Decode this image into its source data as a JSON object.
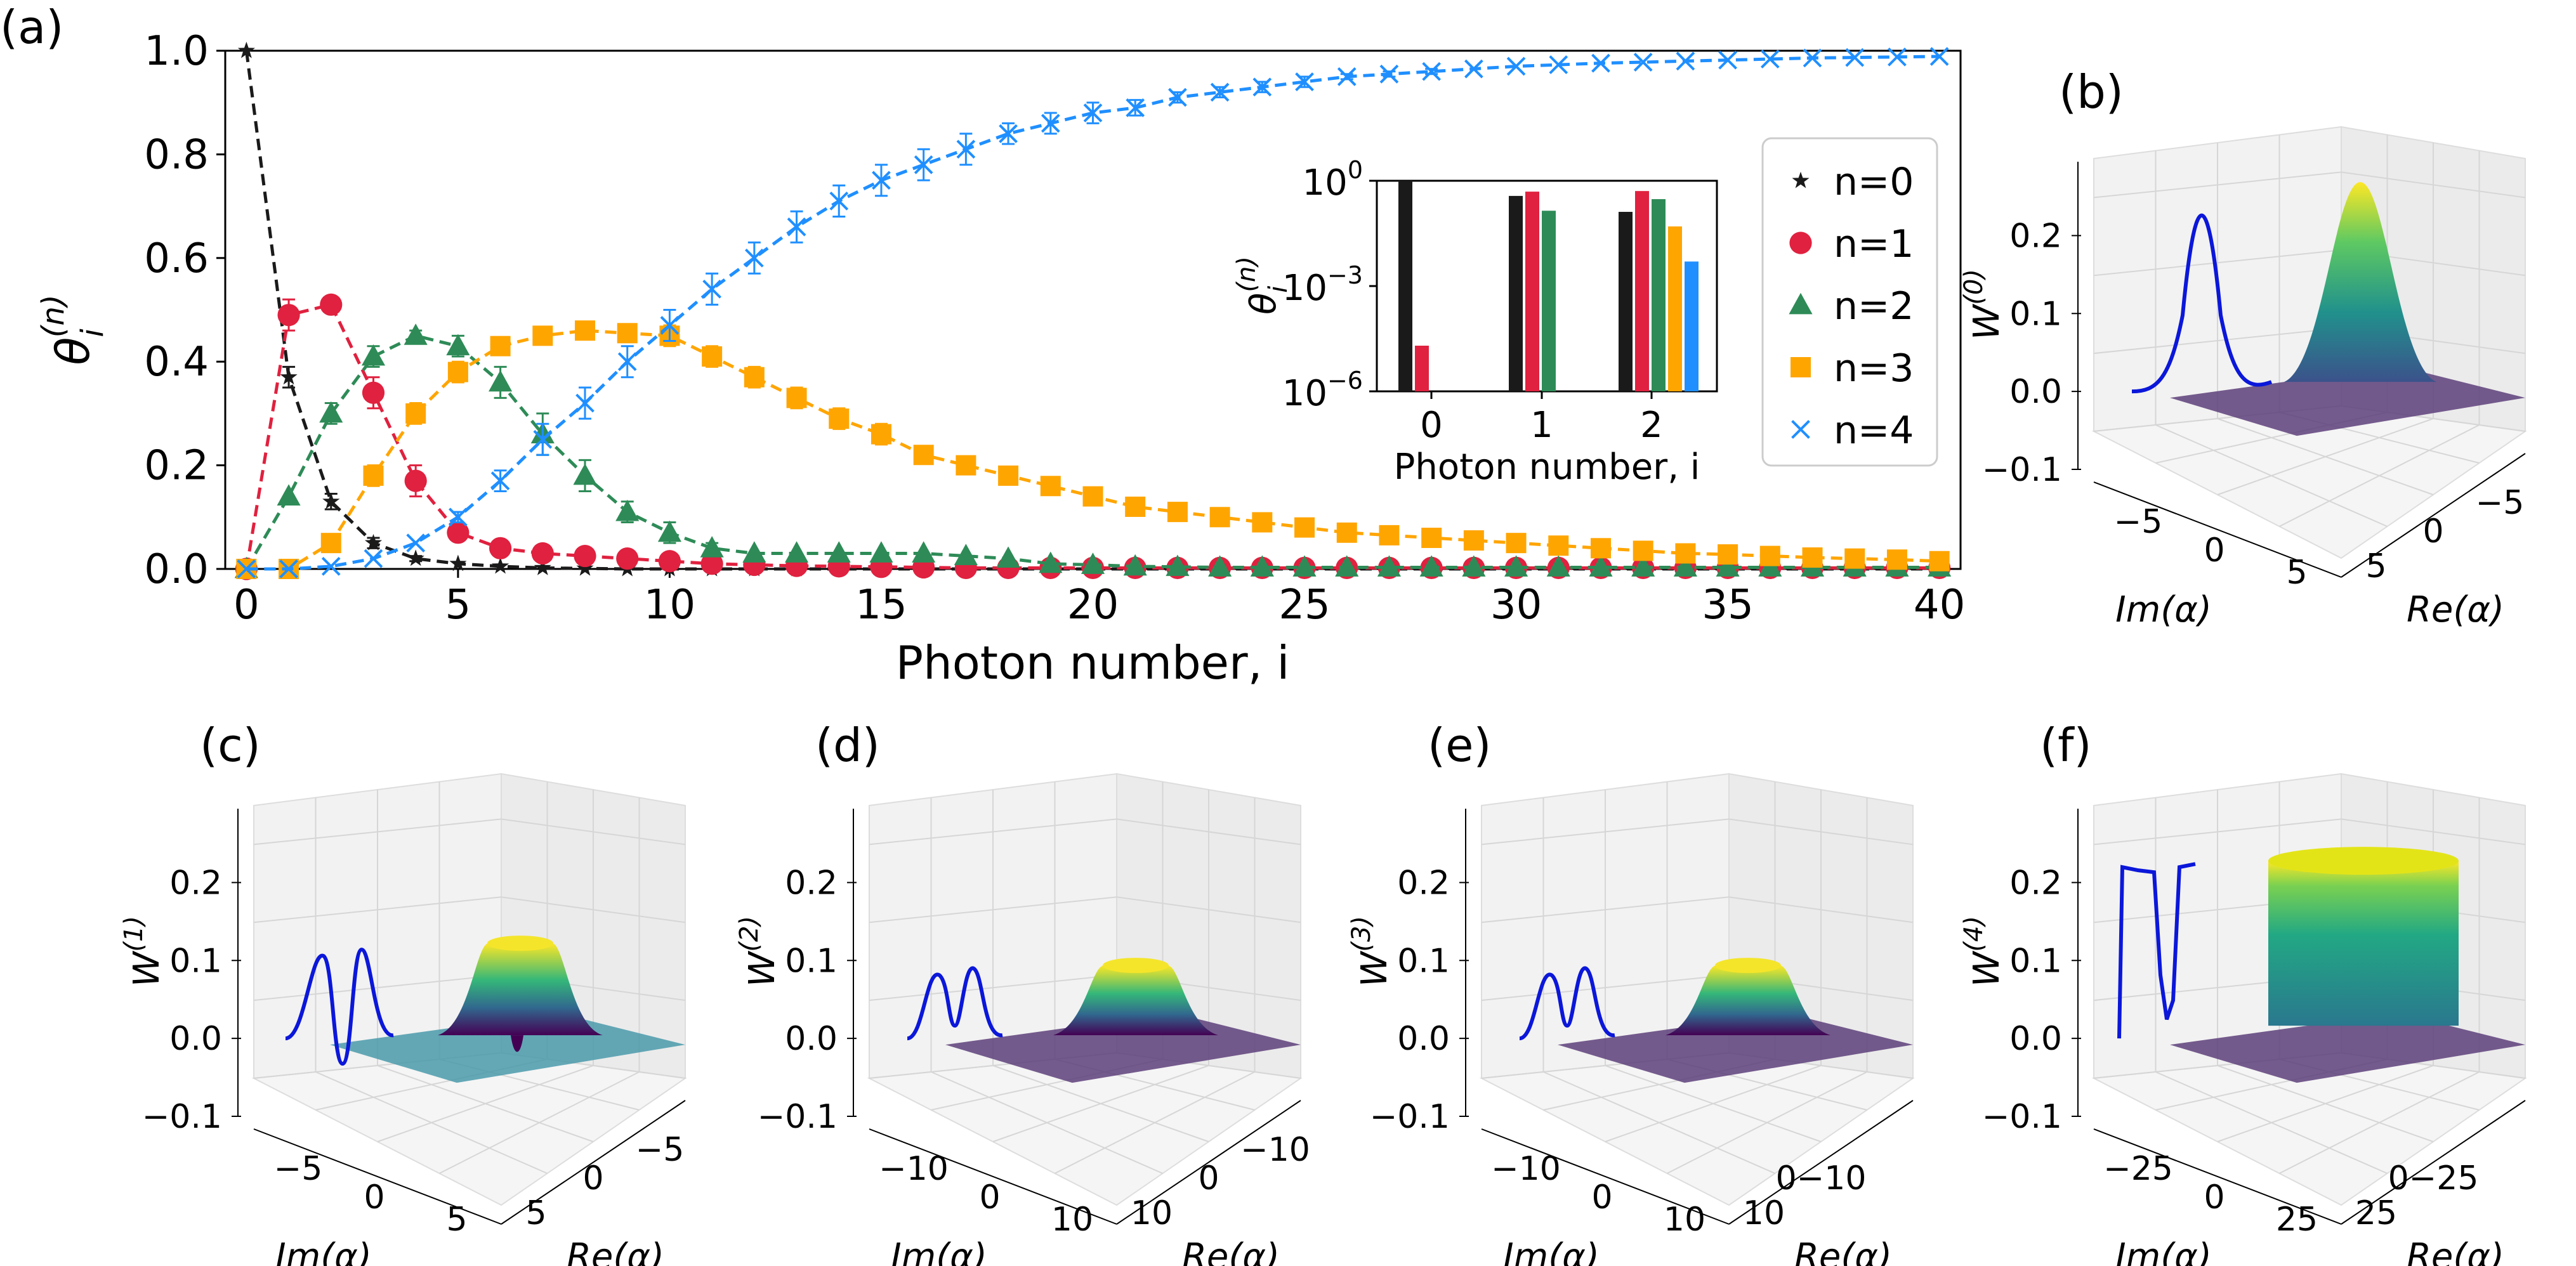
{
  "panel_labels": {
    "a": "(a)",
    "b": "(b)",
    "c": "(c)",
    "d": "(d)",
    "e": "(e)",
    "f": "(f)"
  },
  "main": {
    "xlabel": "Photon number, i",
    "ylabel_base": "θ",
    "ylabel_sub": "i",
    "ylabel_sup": "(n)",
    "xticks": [
      "0",
      "5",
      "10",
      "15",
      "20",
      "25",
      "30",
      "35",
      "40"
    ],
    "yticks": [
      "0.0",
      "0.2",
      "0.4",
      "0.6",
      "0.8",
      "1.0"
    ],
    "legend": [
      "n=0",
      "n=1",
      "n=2",
      "n=3",
      "n=4"
    ]
  },
  "inset": {
    "xlabel": "Photon number, i",
    "ylabel_base": "θ",
    "ylabel_sub": "i",
    "ylabel_sup": "(n)",
    "xticks": [
      "0",
      "1",
      "2"
    ],
    "yticks_base": "10",
    "yticks_exp": [
      "0",
      "−3",
      "−6"
    ]
  },
  "panels3d": [
    {
      "key": "b",
      "zlabel_base": "W",
      "zlabel_sup": "(0)",
      "zticks": [
        "0.2",
        "0.1",
        "0.0",
        "−0.1"
      ],
      "imticks": [
        "−5",
        "0",
        "5"
      ],
      "reticks": [
        "5",
        "0",
        "−5"
      ],
      "im_label": "Im(α)",
      "re_label": "Re(α)"
    },
    {
      "key": "c",
      "zlabel_base": "W",
      "zlabel_sup": "(1)",
      "zticks": [
        "0.2",
        "0.1",
        "0.0",
        "−0.1"
      ],
      "imticks": [
        "−5",
        "0",
        "5"
      ],
      "reticks": [
        "5",
        "0",
        "−5"
      ],
      "im_label": "Im(α)",
      "re_label": "Re(α)"
    },
    {
      "key": "d",
      "zlabel_base": "W",
      "zlabel_sup": "(2)",
      "zticks": [
        "0.2",
        "0.1",
        "0.0",
        "−0.1"
      ],
      "imticks": [
        "−10",
        "0",
        "10"
      ],
      "reticks": [
        "10",
        "0",
        "−10"
      ],
      "im_label": "Im(α)",
      "re_label": "Re(α)"
    },
    {
      "key": "e",
      "zlabel_base": "W",
      "zlabel_sup": "(3)",
      "zticks": [
        "0.2",
        "0.1",
        "0.0",
        "−0.1"
      ],
      "imticks": [
        "−10",
        "0",
        "10"
      ],
      "reticks": [
        "10",
        "0−10"
      ],
      "im_label": "Im(α)",
      "re_label": "Re(α)"
    },
    {
      "key": "f",
      "zlabel_base": "W",
      "zlabel_sup": "(4)",
      "zticks": [
        "0.2",
        "0.1",
        "0.0",
        "−0.1"
      ],
      "imticks": [
        "−25",
        "0",
        "25"
      ],
      "reticks": [
        "25",
        "0−25"
      ],
      "im_label": "Im(α)",
      "re_label": "Re(α)"
    }
  ],
  "chart_data": [
    {
      "type": "line",
      "title": "",
      "xlabel": "Photon number, i",
      "ylabel": "θ_i^(n)",
      "xlim": [
        -0.5,
        40.5
      ],
      "ylim": [
        0,
        1.0
      ],
      "grid": false,
      "legend_position": "right",
      "series": [
        {
          "name": "n=0",
          "color": "#1a1a1a",
          "marker": "star",
          "x": [
            0,
            1,
            2,
            3,
            4,
            5,
            6,
            7,
            8,
            9,
            10,
            11,
            12,
            13,
            14,
            15,
            16,
            17,
            18,
            19,
            20,
            21,
            22,
            23,
            24,
            25,
            26,
            27,
            28,
            29,
            30,
            31,
            32,
            33,
            34,
            35,
            36,
            37,
            38,
            39,
            40
          ],
          "y": [
            1.0,
            0.37,
            0.13,
            0.05,
            0.02,
            0.01,
            0.005,
            0.002,
            0.001,
            0,
            0,
            0,
            0,
            0,
            0,
            0,
            0,
            0,
            0,
            0,
            0,
            0,
            0,
            0,
            0,
            0,
            0,
            0,
            0,
            0,
            0,
            0,
            0,
            0,
            0,
            0,
            0,
            0,
            0,
            0,
            0
          ],
          "err": [
            0,
            0.02,
            0.015,
            0.01,
            0.005,
            0,
            0,
            0,
            0,
            0,
            0,
            0,
            0,
            0,
            0,
            0,
            0,
            0,
            0,
            0,
            0,
            0,
            0,
            0,
            0,
            0,
            0,
            0,
            0,
            0,
            0,
            0,
            0,
            0,
            0,
            0,
            0,
            0,
            0,
            0,
            0
          ]
        },
        {
          "name": "n=1",
          "color": "#e0213f",
          "marker": "circle",
          "x": [
            0,
            1,
            2,
            3,
            4,
            5,
            6,
            7,
            8,
            9,
            10,
            11,
            12,
            13,
            14,
            15,
            16,
            17,
            18,
            19,
            20,
            21,
            22,
            23,
            24,
            25,
            26,
            27,
            28,
            29,
            30,
            31,
            32,
            33,
            34,
            35,
            36,
            37,
            38,
            39,
            40
          ],
          "y": [
            0,
            0.49,
            0.51,
            0.34,
            0.17,
            0.07,
            0.04,
            0.03,
            0.025,
            0.02,
            0.015,
            0.01,
            0.008,
            0.006,
            0.005,
            0.004,
            0.003,
            0.002,
            0.002,
            0.002,
            0.002,
            0.002,
            0.002,
            0.002,
            0.002,
            0.002,
            0.002,
            0.002,
            0.002,
            0.002,
            0.002,
            0.002,
            0.002,
            0.002,
            0.002,
            0.002,
            0.002,
            0.002,
            0.002,
            0.002,
            0.002
          ],
          "err": [
            0,
            0.03,
            0,
            0.03,
            0.03,
            0.015,
            0,
            0,
            0,
            0,
            0,
            0,
            0,
            0,
            0,
            0,
            0,
            0,
            0,
            0,
            0,
            0,
            0,
            0,
            0,
            0,
            0,
            0,
            0,
            0,
            0,
            0,
            0,
            0,
            0,
            0,
            0,
            0,
            0,
            0,
            0
          ]
        },
        {
          "name": "n=2",
          "color": "#2e8b57",
          "marker": "triangle",
          "x": [
            0,
            1,
            2,
            3,
            4,
            5,
            6,
            7,
            8,
            9,
            10,
            11,
            12,
            13,
            14,
            15,
            16,
            17,
            18,
            19,
            20,
            21,
            22,
            23,
            24,
            25,
            26,
            27,
            28,
            29,
            30,
            31,
            32,
            33,
            34,
            35,
            36,
            37,
            38,
            39,
            40
          ],
          "y": [
            0,
            0.14,
            0.3,
            0.41,
            0.45,
            0.43,
            0.36,
            0.26,
            0.18,
            0.11,
            0.07,
            0.04,
            0.03,
            0.03,
            0.03,
            0.03,
            0.03,
            0.025,
            0.02,
            0.01,
            0.008,
            0.005,
            0.004,
            0.003,
            0.003,
            0.003,
            0.003,
            0.003,
            0.003,
            0.003,
            0.003,
            0.003,
            0.003,
            0.003,
            0.003,
            0.003,
            0.003,
            0.003,
            0.003,
            0.003,
            0.003
          ],
          "err": [
            0,
            0,
            0.02,
            0.02,
            0.01,
            0.02,
            0.03,
            0.04,
            0.03,
            0.02,
            0.02,
            0.01,
            0,
            0,
            0,
            0,
            0,
            0,
            0,
            0,
            0,
            0,
            0,
            0,
            0,
            0,
            0,
            0,
            0,
            0,
            0,
            0,
            0,
            0,
            0,
            0,
            0,
            0,
            0,
            0,
            0
          ]
        },
        {
          "name": "n=3",
          "color": "#ffa500",
          "marker": "square",
          "x": [
            0,
            1,
            2,
            3,
            4,
            5,
            6,
            7,
            8,
            9,
            10,
            11,
            12,
            13,
            14,
            15,
            16,
            17,
            18,
            19,
            20,
            21,
            22,
            23,
            24,
            25,
            26,
            27,
            28,
            29,
            30,
            31,
            32,
            33,
            34,
            35,
            36,
            37,
            38,
            39,
            40
          ],
          "y": [
            0,
            0,
            0.05,
            0.18,
            0.3,
            0.38,
            0.43,
            0.45,
            0.46,
            0.455,
            0.45,
            0.41,
            0.37,
            0.33,
            0.29,
            0.26,
            0.22,
            0.2,
            0.18,
            0.16,
            0.14,
            0.12,
            0.11,
            0.1,
            0.09,
            0.08,
            0.07,
            0.065,
            0.06,
            0.055,
            0.05,
            0.045,
            0.04,
            0.035,
            0.03,
            0.028,
            0.025,
            0.022,
            0.02,
            0.018,
            0.015
          ],
          "err": [
            0,
            0,
            0,
            0.02,
            0.02,
            0.02,
            0.01,
            0.01,
            0.01,
            0.01,
            0.02,
            0.02,
            0.02,
            0.02,
            0.02,
            0.02,
            0.015,
            0.015,
            0.01,
            0.01,
            0.01,
            0,
            0,
            0,
            0,
            0,
            0,
            0,
            0,
            0,
            0,
            0,
            0,
            0,
            0,
            0,
            0,
            0,
            0,
            0,
            0
          ]
        },
        {
          "name": "n=4",
          "color": "#1f8fff",
          "marker": "x",
          "x": [
            0,
            1,
            2,
            3,
            4,
            5,
            6,
            7,
            8,
            9,
            10,
            11,
            12,
            13,
            14,
            15,
            16,
            17,
            18,
            19,
            20,
            21,
            22,
            23,
            24,
            25,
            26,
            27,
            28,
            29,
            30,
            31,
            32,
            33,
            34,
            35,
            36,
            37,
            38,
            39,
            40
          ],
          "y": [
            0,
            0,
            0.005,
            0.02,
            0.05,
            0.1,
            0.17,
            0.25,
            0.32,
            0.4,
            0.47,
            0.54,
            0.6,
            0.66,
            0.71,
            0.75,
            0.78,
            0.81,
            0.84,
            0.86,
            0.88,
            0.89,
            0.91,
            0.92,
            0.93,
            0.94,
            0.95,
            0.955,
            0.96,
            0.965,
            0.97,
            0.973,
            0.976,
            0.978,
            0.98,
            0.982,
            0.984,
            0.986,
            0.987,
            0.988,
            0.989
          ],
          "err": [
            0,
            0,
            0,
            0,
            0,
            0.01,
            0.02,
            0.03,
            0.03,
            0.03,
            0.03,
            0.03,
            0.03,
            0.03,
            0.03,
            0.03,
            0.03,
            0.03,
            0.02,
            0.02,
            0.02,
            0.015,
            0.01,
            0.01,
            0.01,
            0.01,
            0.005,
            0.005,
            0.005,
            0,
            0,
            0,
            0,
            0,
            0,
            0,
            0,
            0,
            0,
            0,
            0
          ]
        }
      ]
    },
    {
      "type": "bar",
      "title": "",
      "xlabel": "Photon number, i",
      "ylabel": "θ_i^(n)",
      "yscale": "log",
      "ylim": [
        1e-06,
        1
      ],
      "categories": [
        "0",
        "1",
        "2"
      ],
      "series": [
        {
          "name": "n=0",
          "color": "#1a1a1a",
          "values": [
            1.0,
            0.37,
            0.13
          ]
        },
        {
          "name": "n=1",
          "color": "#e0213f",
          "values": [
            2e-05,
            0.49,
            0.51
          ]
        },
        {
          "name": "n=2",
          "color": "#2e8b57",
          "values": [
            null,
            0.14,
            0.3
          ]
        },
        {
          "name": "n=3",
          "color": "#ffa500",
          "values": [
            null,
            null,
            0.05
          ]
        },
        {
          "name": "n=4",
          "color": "#1f8fff",
          "values": [
            null,
            null,
            0.005
          ]
        }
      ]
    }
  ]
}
